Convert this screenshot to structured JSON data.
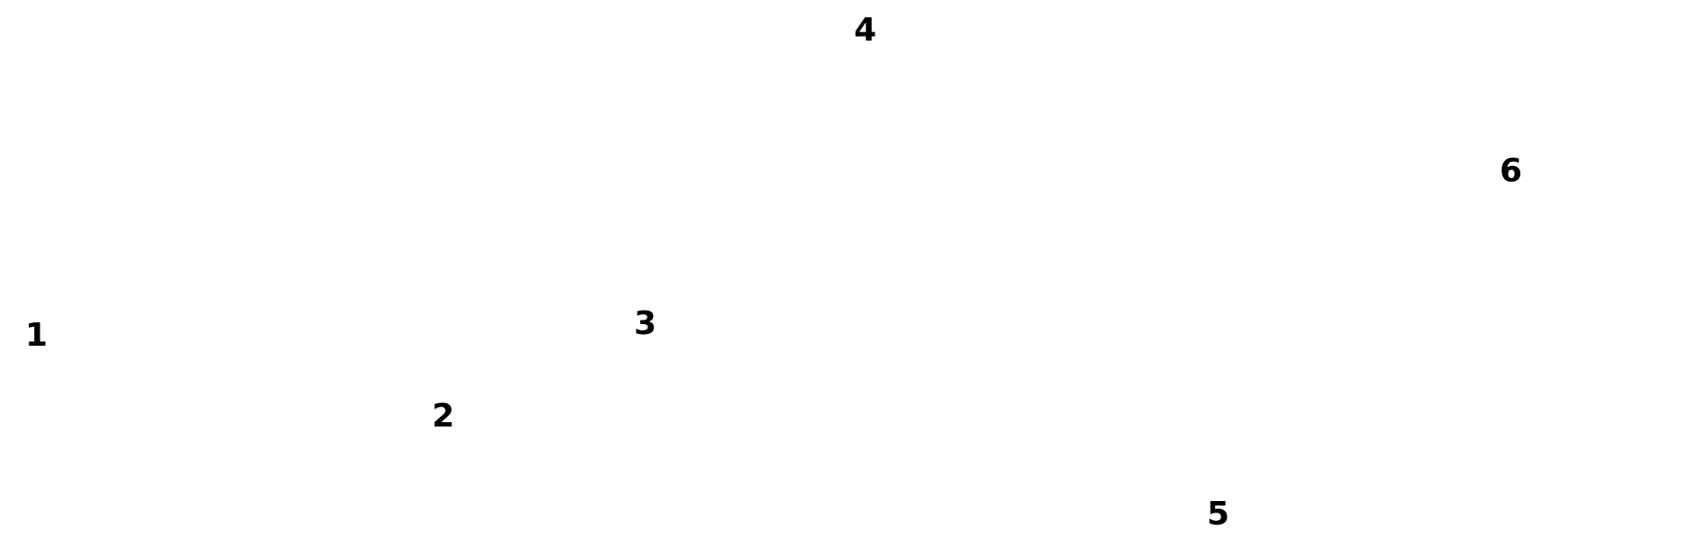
{
  "colors": {
    "background": "#ffffff",
    "text": "#000000"
  },
  "labels": [
    "1",
    "2",
    "3",
    "4",
    "5",
    "6"
  ]
}
